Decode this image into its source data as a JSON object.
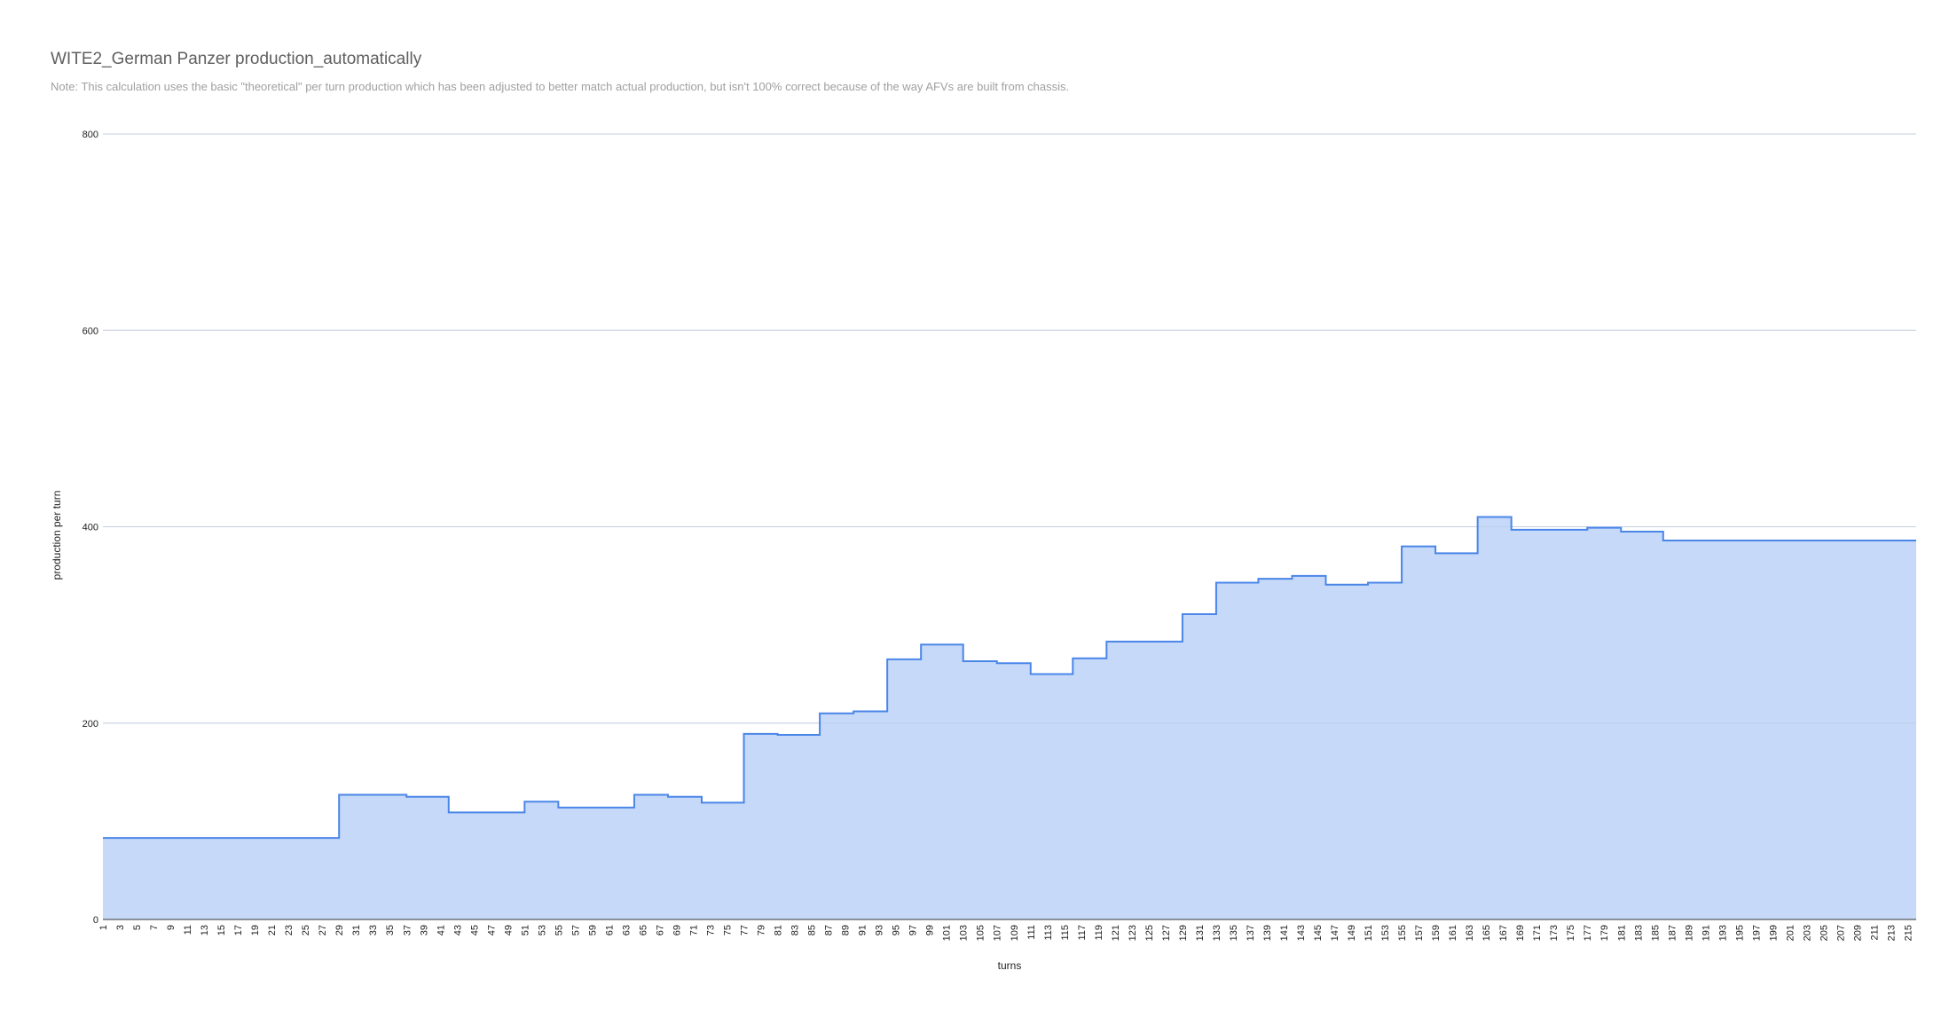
{
  "chart_data": {
    "type": "area",
    "title": "WITE2_German Panzer production_automatically",
    "subtitle": "Note: This calculation uses the basic \"theoretical\" per turn production which has been adjusted to better match actual production, but isn't 100% correct because of the way AFVs are built from chassis.",
    "xlabel": "turns",
    "ylabel": "production per turn",
    "ylim": [
      0,
      800
    ],
    "yticks": [
      0,
      200,
      400,
      600,
      800
    ],
    "xlim": [
      1,
      216
    ],
    "x_tick_start": 1,
    "x_tick_step": 2,
    "grid": true,
    "legend": "none",
    "colors": {
      "line": "#4a86e8",
      "fill": "#c6d9f8",
      "grid": "#d9d9d9",
      "text": "#222222"
    },
    "series": [
      {
        "steps": [
          {
            "x": 1,
            "y": 83
          },
          {
            "x": 29,
            "y": 127
          },
          {
            "x": 37,
            "y": 125
          },
          {
            "x": 42,
            "y": 109
          },
          {
            "x": 51,
            "y": 120
          },
          {
            "x": 55,
            "y": 114
          },
          {
            "x": 64,
            "y": 127
          },
          {
            "x": 68,
            "y": 125
          },
          {
            "x": 72,
            "y": 119
          },
          {
            "x": 77,
            "y": 189
          },
          {
            "x": 81,
            "y": 188
          },
          {
            "x": 86,
            "y": 210
          },
          {
            "x": 90,
            "y": 212
          },
          {
            "x": 94,
            "y": 265
          },
          {
            "x": 98,
            "y": 280
          },
          {
            "x": 103,
            "y": 263
          },
          {
            "x": 107,
            "y": 261
          },
          {
            "x": 111,
            "y": 250
          },
          {
            "x": 116,
            "y": 266
          },
          {
            "x": 120,
            "y": 283
          },
          {
            "x": 129,
            "y": 311
          },
          {
            "x": 133,
            "y": 343
          },
          {
            "x": 138,
            "y": 347
          },
          {
            "x": 142,
            "y": 350
          },
          {
            "x": 146,
            "y": 341
          },
          {
            "x": 151,
            "y": 343
          },
          {
            "x": 155,
            "y": 380
          },
          {
            "x": 159,
            "y": 373
          },
          {
            "x": 164,
            "y": 410
          },
          {
            "x": 168,
            "y": 397
          },
          {
            "x": 177,
            "y": 399
          },
          {
            "x": 181,
            "y": 395
          },
          {
            "x": 186,
            "y": 386
          }
        ]
      }
    ]
  }
}
